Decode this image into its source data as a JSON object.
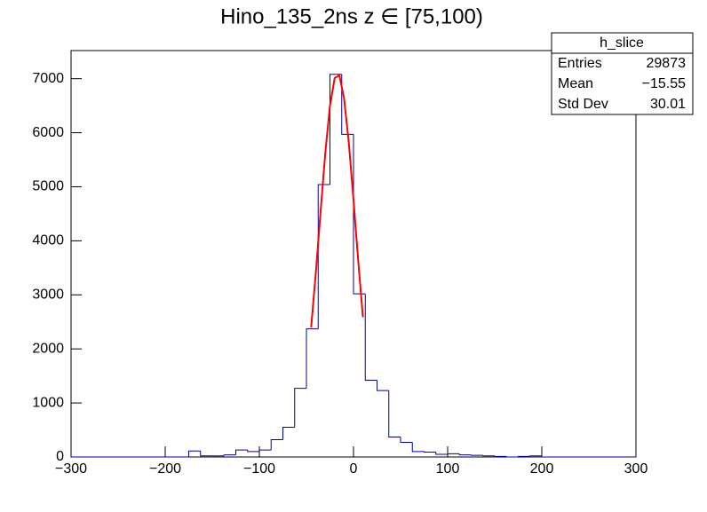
{
  "chart_data": {
    "type": "histogram",
    "title": "Hino_135_2ns z  ∈ [75,100)",
    "bins": [
      -300,
      -287.5,
      -275,
      -262.5,
      -250,
      -237.5,
      -225,
      -212.5,
      -200,
      -187.5,
      -175,
      -162.5,
      -150,
      -137.5,
      -125,
      -112.5,
      -100,
      -87.5,
      -75,
      -62.5,
      -50,
      -37.5,
      -25,
      -12.5,
      0,
      12.5,
      25,
      37.5,
      50,
      62.5,
      75,
      87.5,
      100,
      112.5,
      125,
      137.5,
      150,
      162.5,
      175,
      187.5,
      200,
      212.5,
      225,
      237.5,
      250,
      262.5,
      275,
      287.5,
      300
    ],
    "values": [
      0,
      0,
      0,
      0,
      0,
      0,
      0,
      0,
      0,
      0,
      110,
      20,
      20,
      40,
      130,
      100,
      130,
      320,
      550,
      1270,
      2370,
      5040,
      7080,
      5970,
      3020,
      1420,
      1230,
      370,
      270,
      100,
      90,
      50,
      60,
      40,
      30,
      20,
      10,
      0,
      10,
      20,
      0,
      0,
      0,
      0,
      0,
      0,
      0,
      0
    ],
    "color": "#000099",
    "fit": {
      "color": "#ff0000",
      "x": [
        -45,
        -40,
        -35,
        -30,
        -25,
        -20,
        -15,
        -10,
        -5,
        0,
        5,
        10
      ],
      "values": [
        2397,
        3412,
        4531,
        5618,
        6498,
        7012,
        7061,
        6634,
        5816,
        4758,
        3632,
        2587
      ]
    },
    "xlim": [
      -300,
      300
    ],
    "xticks": [
      {
        "value": -300,
        "label": "−300"
      },
      {
        "value": -200,
        "label": "−200"
      },
      {
        "value": -100,
        "label": "−100"
      },
      0,
      100,
      200,
      300
    ],
    "ylim": [
      0,
      7520
    ],
    "yticks": [
      0,
      1000,
      2000,
      3000,
      4000,
      5000,
      6000,
      7000
    ],
    "stats": {
      "title": "h_slice",
      "rows": [
        [
          "Entries",
          "29873"
        ],
        [
          "Mean",
          "−15.55"
        ],
        [
          "Std Dev",
          "30.01"
        ]
      ]
    }
  }
}
